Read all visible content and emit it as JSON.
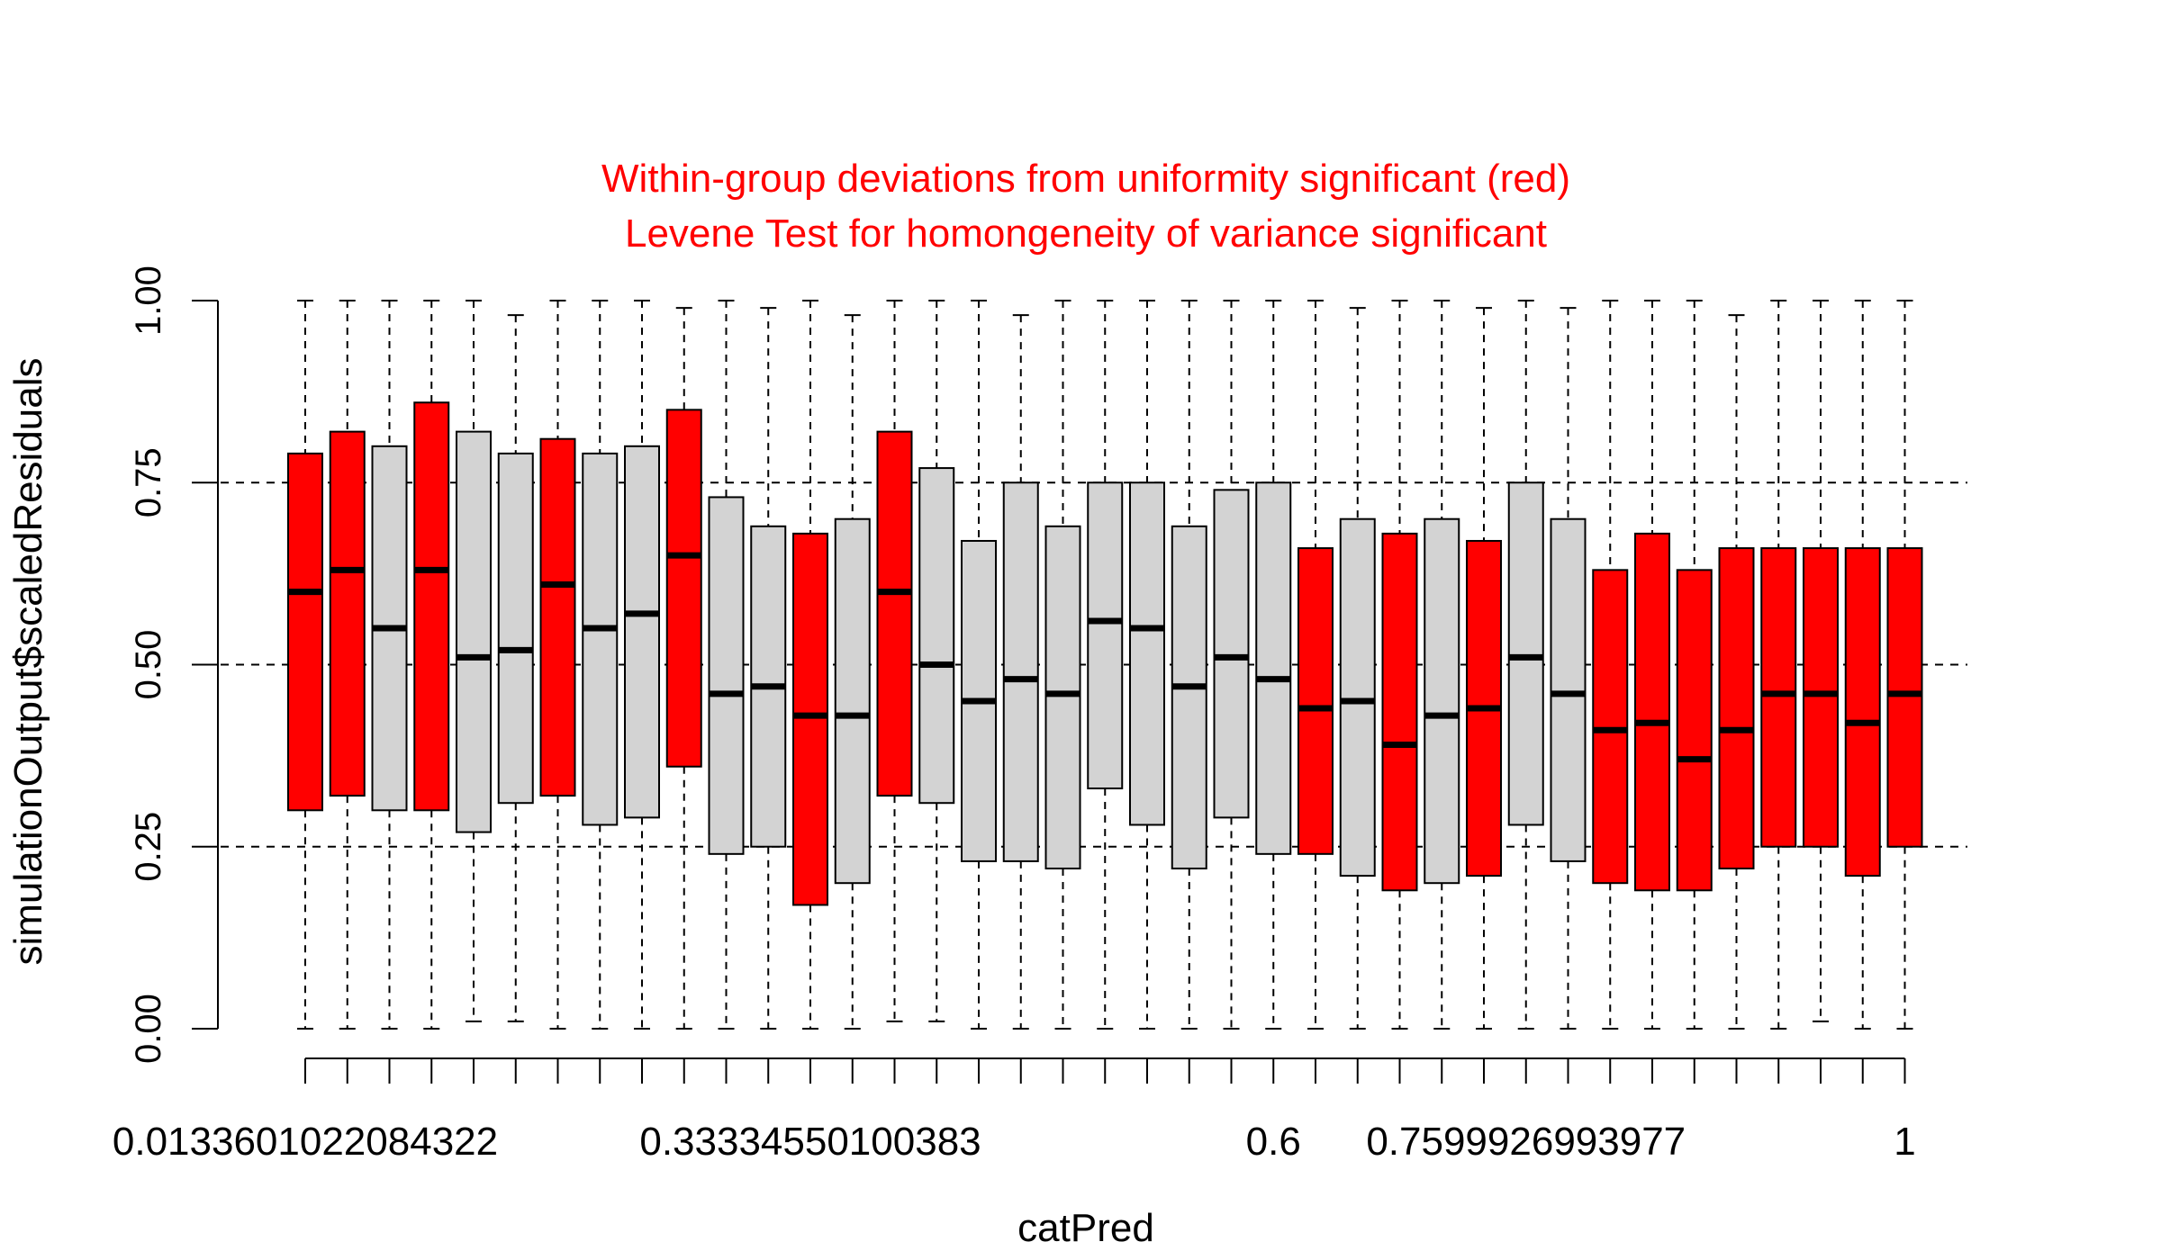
{
  "colors": {
    "significant": "#FF0000",
    "normal": "#D3D3D3",
    "stroke": "#000000",
    "title": "#FF0000"
  },
  "chart_data": {
    "type": "boxplot",
    "title": "Within-group deviations from uniformity significant (red)",
    "subtitle": "Levene Test for homongeneity of variance significant",
    "xlabel": "catPred",
    "ylabel": "simulationOutput$scaledResiduals",
    "ylim": [
      0,
      1
    ],
    "y_ticks": [
      0.0,
      0.25,
      0.5,
      0.75,
      1.0
    ],
    "y_tick_labels": [
      "0.00",
      "0.25",
      "0.50",
      "0.75",
      "1.00"
    ],
    "grid": "horizontal dashed at 0.25, 0.50, 0.75",
    "x_tick_labels": [
      {
        "index": 1,
        "label": "0.0133601022084322"
      },
      {
        "index": 13,
        "label": "0.33334550100383"
      },
      {
        "index": 24,
        "label": "0.6"
      },
      {
        "index": 30,
        "label": "0.7599926993977"
      },
      {
        "index": 39,
        "label": "1"
      }
    ],
    "boxes": [
      {
        "min": 0.0,
        "q1": 0.3,
        "median": 0.6,
        "q3": 0.79,
        "max": 1.0,
        "significant": true
      },
      {
        "min": 0.0,
        "q1": 0.32,
        "median": 0.63,
        "q3": 0.82,
        "max": 1.0,
        "significant": true
      },
      {
        "min": 0.0,
        "q1": 0.3,
        "median": 0.55,
        "q3": 0.8,
        "max": 1.0,
        "significant": false
      },
      {
        "min": 0.0,
        "q1": 0.3,
        "median": 0.63,
        "q3": 0.86,
        "max": 1.0,
        "significant": true
      },
      {
        "min": 0.01,
        "q1": 0.27,
        "median": 0.51,
        "q3": 0.82,
        "max": 1.0,
        "significant": false
      },
      {
        "min": 0.01,
        "q1": 0.31,
        "median": 0.52,
        "q3": 0.79,
        "max": 0.98,
        "significant": false
      },
      {
        "min": 0.0,
        "q1": 0.32,
        "median": 0.61,
        "q3": 0.81,
        "max": 1.0,
        "significant": true
      },
      {
        "min": 0.0,
        "q1": 0.28,
        "median": 0.55,
        "q3": 0.79,
        "max": 1.0,
        "significant": false
      },
      {
        "min": 0.0,
        "q1": 0.29,
        "median": 0.57,
        "q3": 0.8,
        "max": 1.0,
        "significant": false
      },
      {
        "min": 0.0,
        "q1": 0.36,
        "median": 0.65,
        "q3": 0.85,
        "max": 0.99,
        "significant": true
      },
      {
        "min": 0.0,
        "q1": 0.24,
        "median": 0.46,
        "q3": 0.73,
        "max": 1.0,
        "significant": false
      },
      {
        "min": 0.0,
        "q1": 0.25,
        "median": 0.47,
        "q3": 0.69,
        "max": 0.99,
        "significant": false
      },
      {
        "min": 0.0,
        "q1": 0.17,
        "median": 0.43,
        "q3": 0.68,
        "max": 1.0,
        "significant": true
      },
      {
        "min": 0.0,
        "q1": 0.2,
        "median": 0.43,
        "q3": 0.7,
        "max": 0.98,
        "significant": false
      },
      {
        "min": 0.01,
        "q1": 0.32,
        "median": 0.6,
        "q3": 0.82,
        "max": 1.0,
        "significant": true
      },
      {
        "min": 0.01,
        "q1": 0.31,
        "median": 0.5,
        "q3": 0.77,
        "max": 1.0,
        "significant": false
      },
      {
        "min": 0.0,
        "q1": 0.23,
        "median": 0.45,
        "q3": 0.67,
        "max": 1.0,
        "significant": false
      },
      {
        "min": 0.0,
        "q1": 0.23,
        "median": 0.48,
        "q3": 0.75,
        "max": 0.98,
        "significant": false
      },
      {
        "min": 0.0,
        "q1": 0.22,
        "median": 0.46,
        "q3": 0.69,
        "max": 1.0,
        "significant": false
      },
      {
        "min": 0.0,
        "q1": 0.33,
        "median": 0.56,
        "q3": 0.75,
        "max": 1.0,
        "significant": false
      },
      {
        "min": 0.0,
        "q1": 0.28,
        "median": 0.55,
        "q3": 0.75,
        "max": 1.0,
        "significant": false
      },
      {
        "min": 0.0,
        "q1": 0.22,
        "median": 0.47,
        "q3": 0.69,
        "max": 1.0,
        "significant": false
      },
      {
        "min": 0.0,
        "q1": 0.29,
        "median": 0.51,
        "q3": 0.74,
        "max": 1.0,
        "significant": false
      },
      {
        "min": 0.0,
        "q1": 0.24,
        "median": 0.48,
        "q3": 0.75,
        "max": 1.0,
        "significant": false
      },
      {
        "min": 0.0,
        "q1": 0.24,
        "median": 0.44,
        "q3": 0.66,
        "max": 1.0,
        "significant": true
      },
      {
        "min": 0.0,
        "q1": 0.21,
        "median": 0.45,
        "q3": 0.7,
        "max": 0.99,
        "significant": false
      },
      {
        "min": 0.0,
        "q1": 0.19,
        "median": 0.39,
        "q3": 0.68,
        "max": 1.0,
        "significant": true
      },
      {
        "min": 0.0,
        "q1": 0.2,
        "median": 0.43,
        "q3": 0.7,
        "max": 1.0,
        "significant": false
      },
      {
        "min": 0.0,
        "q1": 0.21,
        "median": 0.44,
        "q3": 0.67,
        "max": 0.99,
        "significant": true
      },
      {
        "min": 0.0,
        "q1": 0.28,
        "median": 0.51,
        "q3": 0.75,
        "max": 1.0,
        "significant": false
      },
      {
        "min": 0.0,
        "q1": 0.23,
        "median": 0.46,
        "q3": 0.7,
        "max": 0.99,
        "significant": false
      },
      {
        "min": 0.0,
        "q1": 0.2,
        "median": 0.41,
        "q3": 0.63,
        "max": 1.0,
        "significant": true
      },
      {
        "min": 0.0,
        "q1": 0.19,
        "median": 0.42,
        "q3": 0.68,
        "max": 1.0,
        "significant": true
      },
      {
        "min": 0.0,
        "q1": 0.19,
        "median": 0.37,
        "q3": 0.63,
        "max": 1.0,
        "significant": true
      },
      {
        "min": 0.0,
        "q1": 0.22,
        "median": 0.41,
        "q3": 0.66,
        "max": 0.98,
        "significant": true
      },
      {
        "min": 0.0,
        "q1": 0.25,
        "median": 0.46,
        "q3": 0.66,
        "max": 1.0,
        "significant": true
      },
      {
        "min": 0.01,
        "q1": 0.25,
        "median": 0.46,
        "q3": 0.66,
        "max": 1.0,
        "significant": true
      },
      {
        "min": 0.0,
        "q1": 0.21,
        "median": 0.42,
        "q3": 0.66,
        "max": 1.0,
        "significant": true
      },
      {
        "min": 0.0,
        "q1": 0.25,
        "median": 0.46,
        "q3": 0.66,
        "max": 1.0,
        "significant": true
      }
    ]
  }
}
